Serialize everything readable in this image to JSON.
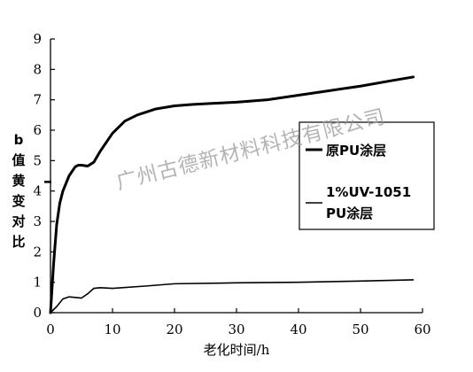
{
  "chart_data": {
    "type": "line",
    "xlabel": "老化时间/h",
    "ylabel": "b值黄变对比",
    "xlim": [
      0,
      60
    ],
    "ylim": [
      0,
      9
    ],
    "x_ticks": [
      "0",
      "10",
      "20",
      "30",
      "40",
      "50",
      "60"
    ],
    "y_ticks": [
      "0",
      "1",
      "2",
      "3",
      "4",
      "5",
      "6",
      "7",
      "8",
      "9"
    ],
    "grid": false,
    "legend_position": "right",
    "series": [
      {
        "name": "原PU涂层",
        "line_width": "thick",
        "x": [
          0,
          0.5,
          1,
          1.5,
          2,
          3,
          4,
          4.5,
          5,
          6,
          7,
          8,
          10,
          12,
          14,
          17,
          20,
          23,
          26,
          30,
          35,
          40,
          45,
          50,
          55,
          58.5
        ],
        "y": [
          0,
          1.6,
          2.9,
          3.6,
          4.0,
          4.5,
          4.8,
          4.85,
          4.85,
          4.82,
          4.95,
          5.3,
          5.9,
          6.3,
          6.5,
          6.7,
          6.8,
          6.85,
          6.88,
          6.92,
          7.0,
          7.15,
          7.3,
          7.45,
          7.63,
          7.75
        ]
      },
      {
        "name": "1%UV-1051 PU涂层",
        "line_width": "thin",
        "x": [
          0,
          1,
          2,
          3,
          4,
          5,
          6,
          7,
          8,
          10,
          15,
          20,
          30,
          40,
          50,
          58.5
        ],
        "y": [
          0,
          0.2,
          0.45,
          0.52,
          0.5,
          0.48,
          0.62,
          0.8,
          0.82,
          0.8,
          0.87,
          0.95,
          0.98,
          1.0,
          1.04,
          1.08
        ]
      }
    ],
    "legend": {
      "entries": [
        {
          "label_lines": [
            "原PU涂层"
          ],
          "series_index": 0
        },
        {
          "label_lines": [
            "1%UV-1051",
            "PU涂层"
          ],
          "series_index": 1
        }
      ]
    },
    "watermark": "广州古德新材料科技有限公司"
  }
}
